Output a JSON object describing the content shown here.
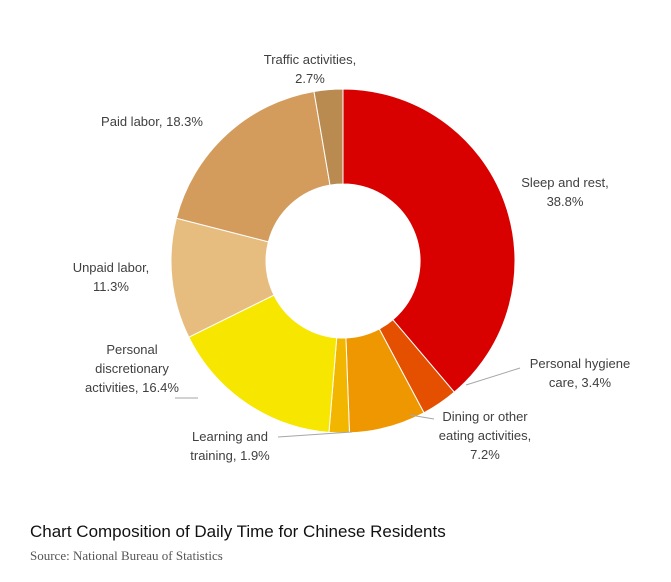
{
  "chart_data": {
    "type": "pie",
    "donut": true,
    "title": "Chart  Composition of Daily Time for Chinese Residents",
    "source": "Source: National Bureau of Statistics",
    "legend": "none",
    "slices": [
      {
        "name": "Sleep and rest",
        "label": "Sleep and rest,",
        "value_text": "38.8%",
        "value": 38.8,
        "color": "#D90000"
      },
      {
        "name": "Personal hygiene care",
        "label": "Personal hygiene",
        "label2": "care, 3.4%",
        "value": 3.4,
        "color": "#E55000"
      },
      {
        "name": "Dining or other eating activities",
        "label": "Dining or other",
        "label2": "eating activities,",
        "value_text": "7.2%",
        "value": 7.2,
        "color": "#EE9700"
      },
      {
        "name": "Learning and training",
        "label": "Learning and",
        "label2": "training, 1.9%",
        "value": 1.9,
        "color": "#F2B500"
      },
      {
        "name": "Personal discretionary activities",
        "label": "Personal",
        "label2": "discretionary",
        "label3": "activities, 16.4%",
        "value": 16.4,
        "color": "#F6E600"
      },
      {
        "name": "Unpaid labor",
        "label": "Unpaid labor,",
        "value_text": "11.3%",
        "value": 11.3,
        "color": "#E6BC7F"
      },
      {
        "name": "Paid labor",
        "label": "Paid labor, 18.3%",
        "value": 18.3,
        "color": "#D39C5D"
      },
      {
        "name": "Traffic activities",
        "label": "Traffic activities,",
        "value_text": "2.7%",
        "value": 2.7,
        "color": "#B98B50"
      }
    ]
  }
}
